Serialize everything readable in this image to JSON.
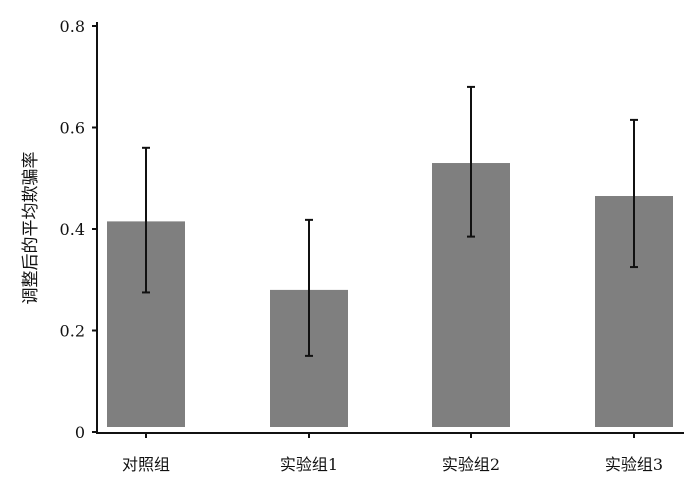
{
  "chart_data": {
    "type": "bar",
    "title": "",
    "xlabel": "",
    "ylabel": "调整后的平均欺骗率",
    "categories": [
      "对照组",
      "实验组1",
      "实验组2",
      "实验组3"
    ],
    "values": [
      0.415,
      0.28,
      0.53,
      0.465
    ],
    "error_low": [
      0.275,
      0.15,
      0.385,
      0.325
    ],
    "error_high": [
      0.56,
      0.418,
      0.68,
      0.615
    ],
    "ylim": [
      0,
      0.8
    ],
    "yticks": [
      0,
      0.2,
      0.4,
      0.6,
      0.8
    ],
    "ytick_labels": [
      "0",
      "0.2",
      "0.4",
      "0.6",
      "0.8"
    ],
    "grid": false,
    "bar_color": "#7f7f7f",
    "error_color": "#111111"
  }
}
